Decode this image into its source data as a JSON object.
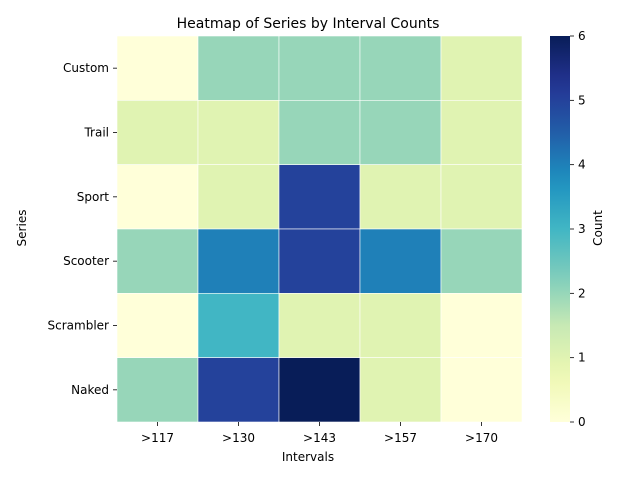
{
  "chart_data": {
    "type": "heatmap",
    "title": "Heatmap of Series by Interval Counts",
    "xlabel": "Intervals",
    "ylabel": "Series",
    "x_categories": [
      ">117",
      ">130",
      ">143",
      ">157",
      ">170"
    ],
    "y_categories": [
      "Custom",
      "Trail",
      "Sport",
      "Scooter",
      "Scrambler",
      "Naked"
    ],
    "values": [
      [
        0,
        2,
        2,
        2,
        1
      ],
      [
        1,
        1,
        2,
        2,
        1
      ],
      [
        0,
        1,
        5,
        1,
        1
      ],
      [
        2,
        4,
        5,
        4,
        2
      ],
      [
        0,
        3,
        1,
        1,
        0
      ],
      [
        2,
        5,
        6,
        1,
        0
      ]
    ],
    "colorbar": {
      "label": "Count",
      "range": [
        0,
        6
      ],
      "ticks": [
        "0",
        "1",
        "2",
        "3",
        "4",
        "5",
        "6"
      ],
      "colormap": "YlGnBu"
    },
    "grid": false,
    "cell_border_color": "#ffffff"
  }
}
